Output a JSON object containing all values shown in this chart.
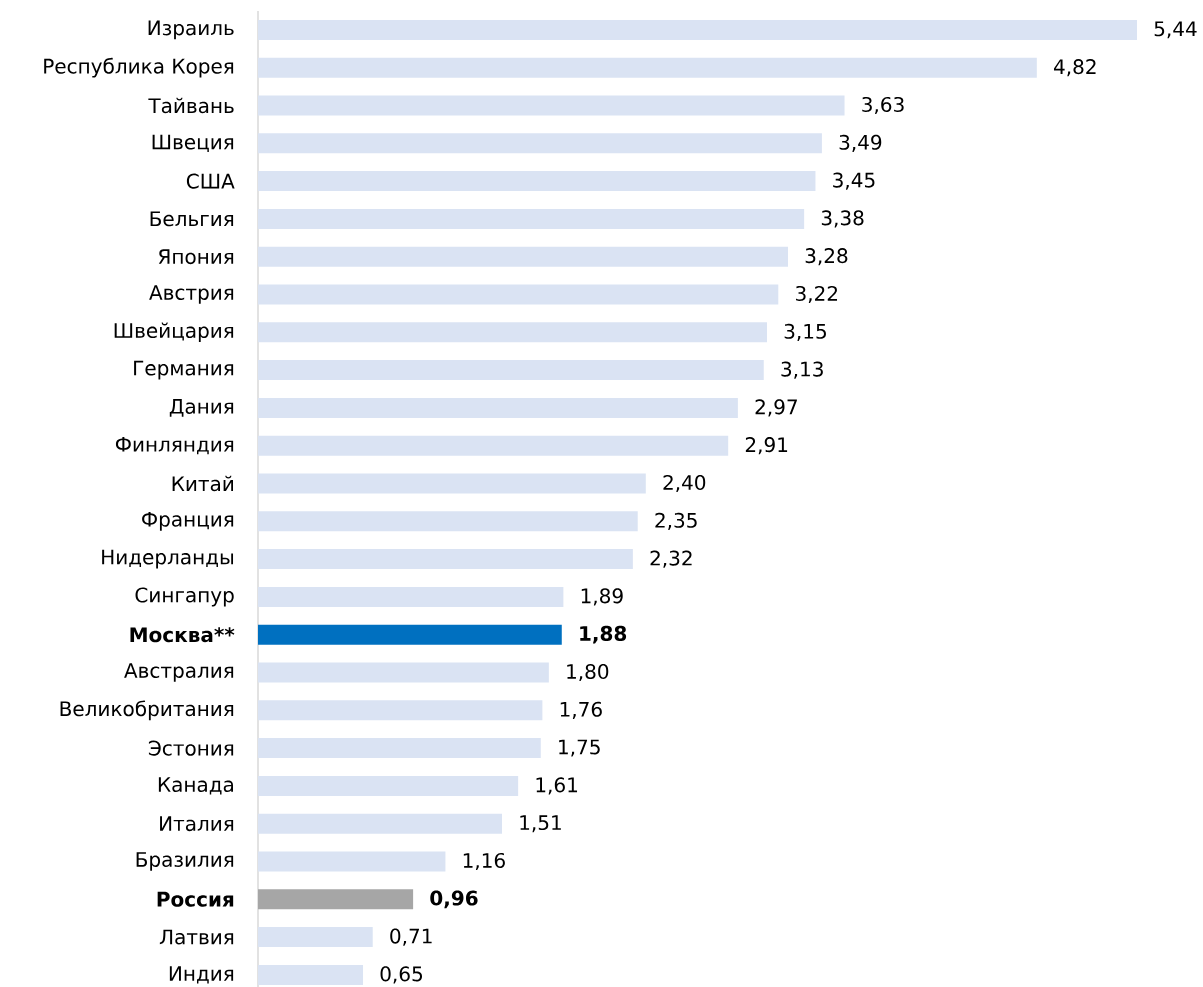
{
  "chart_data": {
    "type": "bar",
    "orientation": "horizontal",
    "categories": [
      "Израиль",
      "Республика Корея",
      "Тайвань",
      "Швеция",
      "США",
      "Бельгия",
      "Япония",
      "Австрия",
      "Швейцария",
      "Германия",
      "Дания",
      "Финляндия",
      "Китай",
      "Франция",
      "Нидерланды",
      "Сингапур",
      "Москва**",
      "Австралия",
      "Великобритания",
      "Эстония",
      "Канада",
      "Италия",
      "Бразилия",
      "Россия",
      "Латвия",
      "Индия"
    ],
    "values": [
      5.44,
      4.82,
      3.63,
      3.49,
      3.45,
      3.38,
      3.28,
      3.22,
      3.15,
      3.13,
      2.97,
      2.91,
      2.4,
      2.35,
      2.32,
      1.89,
      1.88,
      1.8,
      1.76,
      1.75,
      1.61,
      1.51,
      1.16,
      0.96,
      0.71,
      0.65
    ],
    "value_labels": [
      "5,44",
      "4,82",
      "3,63",
      "3,49",
      "3,45",
      "3,38",
      "3,28",
      "3,22",
      "3,15",
      "3,13",
      "2,97",
      "2,91",
      "2,40",
      "2,35",
      "2,32",
      "1,89",
      "1,88",
      "1,80",
      "1,76",
      "1,75",
      "1,61",
      "1,51",
      "1,16",
      "0,96",
      "0,71",
      "0,65"
    ],
    "colors": [
      "#dae3f3",
      "#dae3f3",
      "#dae3f3",
      "#dae3f3",
      "#dae3f3",
      "#dae3f3",
      "#dae3f3",
      "#dae3f3",
      "#dae3f3",
      "#dae3f3",
      "#dae3f3",
      "#dae3f3",
      "#dae3f3",
      "#dae3f3",
      "#dae3f3",
      "#dae3f3",
      "#0070c0",
      "#dae3f3",
      "#dae3f3",
      "#dae3f3",
      "#dae3f3",
      "#dae3f3",
      "#dae3f3",
      "#a6a6a6",
      "#dae3f3",
      "#dae3f3"
    ]
  }
}
